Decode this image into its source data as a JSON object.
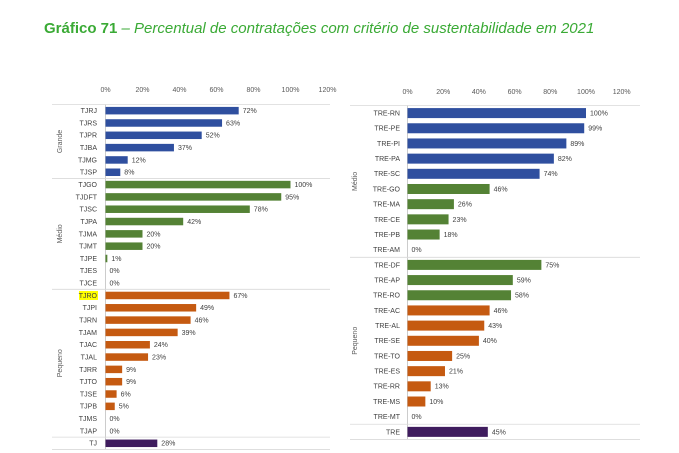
{
  "title": {
    "number": "Gráfico 71",
    "text": " – Percentual de contratações com critério de sustentabilidade em 2021"
  },
  "colors": {
    "grande": "#2f4f9f",
    "medio": "#548235",
    "pequeno": "#c55a11",
    "total": "#3f1c5e",
    "highlight": "#ffff00"
  },
  "chart_data": [
    {
      "type": "bar",
      "orientation": "horizontal",
      "xlim": [
        0,
        120
      ],
      "ticks": [
        "0%",
        "20%",
        "40%",
        "60%",
        "80%",
        "100%",
        "120%"
      ],
      "value_suffix": "%",
      "groups": [
        {
          "name": "Grande",
          "color": "grande",
          "categories": [
            "TJRJ",
            "TJRS",
            "TJPR",
            "TJBA",
            "TJMG",
            "TJSP"
          ],
          "values": [
            72,
            63,
            52,
            37,
            12,
            8
          ]
        },
        {
          "name": "Médio",
          "color": "medio",
          "categories": [
            "TJGO",
            "TJDFT",
            "TJSC",
            "TJPA",
            "TJMA",
            "TJMT",
            "TJPE",
            "TJES",
            "TJCE"
          ],
          "values": [
            100,
            95,
            78,
            42,
            20,
            20,
            1,
            0,
            0
          ]
        },
        {
          "name": "Pequeno",
          "color": "pequeno",
          "categories": [
            "TJRO",
            "TJPI",
            "TJRN",
            "TJAM",
            "TJAC",
            "TJAL",
            "TJRR",
            "TJTO",
            "TJSE",
            "TJPB",
            "TJMS",
            "TJAP"
          ],
          "values": [
            67,
            49,
            46,
            39,
            24,
            23,
            9,
            9,
            6,
            5,
            0,
            0
          ],
          "highlighted": [
            "TJRO"
          ]
        },
        {
          "name": "",
          "color": "total",
          "categories": [
            "TJ"
          ],
          "values": [
            28
          ]
        }
      ]
    },
    {
      "type": "bar",
      "orientation": "horizontal",
      "xlim": [
        0,
        120
      ],
      "ticks": [
        "0%",
        "20%",
        "40%",
        "60%",
        "80%",
        "100%",
        "120%"
      ],
      "value_suffix": "%",
      "groups": [
        {
          "name": "Médio",
          "colors_by_bar": [
            "grande",
            "grande",
            "grande",
            "grande",
            "grande",
            "medio",
            "medio",
            "medio",
            "medio",
            "medio"
          ],
          "categories": [
            "TRE-RN",
            "TRE-PE",
            "TRE-PI",
            "TRE-PA",
            "TRE-SC",
            "TRE-GO",
            "TRE-MA",
            "TRE-CE",
            "TRE-PB",
            "TRE-AM"
          ],
          "values": [
            100,
            99,
            89,
            82,
            74,
            46,
            26,
            23,
            18,
            0
          ]
        },
        {
          "name": "Pequeno",
          "colors_by_bar": [
            "medio",
            "medio",
            "medio",
            "pequeno",
            "pequeno",
            "pequeno",
            "pequeno",
            "pequeno",
            "pequeno",
            "pequeno",
            "pequeno"
          ],
          "categories": [
            "TRE-DF",
            "TRE-AP",
            "TRE-RO",
            "TRE-AC",
            "TRE-AL",
            "TRE-SE",
            "TRE-TO",
            "TRE-ES",
            "TRE-RR",
            "TRE-MS",
            "TRE-MT"
          ],
          "values": [
            75,
            59,
            58,
            46,
            43,
            40,
            25,
            21,
            13,
            10,
            0
          ]
        },
        {
          "name": "",
          "colors_by_bar": [
            "total"
          ],
          "categories": [
            "TRE"
          ],
          "values": [
            45
          ]
        }
      ]
    }
  ]
}
